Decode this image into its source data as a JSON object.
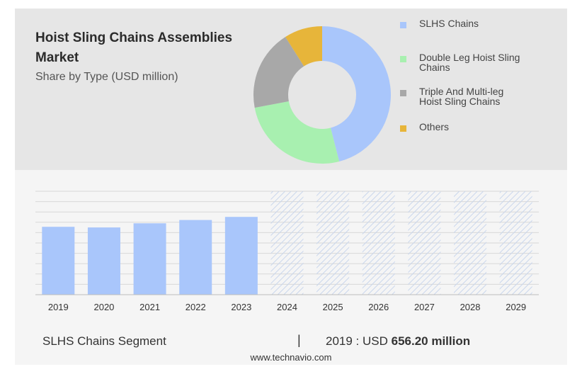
{
  "header": {
    "title": "Hoist Sling Chains Assemblies Market",
    "subtitle": "Share by Type (USD million)"
  },
  "colors": {
    "slhs": "#a9c6fb",
    "double_leg": "#a8f0b0",
    "triple": "#a8a8a8",
    "others": "#e7b53a",
    "forecast_hatch": "#c9d6ec",
    "grid": "#d8d8d8"
  },
  "chart_data": [
    {
      "type": "pie",
      "title": "Share by Type (USD million)",
      "labels": [
        "SLHS Chains",
        "Double Leg Hoist Sling Chains",
        "Triple And Multi-leg Hoist Sling Chains",
        "Others"
      ],
      "values": [
        46,
        26,
        19,
        9
      ],
      "legend": "right",
      "donut": true
    },
    {
      "type": "bar",
      "categories": [
        "2019",
        "2020",
        "2021",
        "2022",
        "2023",
        "2024",
        "2025",
        "2026",
        "2027",
        "2028",
        "2029"
      ],
      "values": [
        656.2,
        650,
        690,
        722,
        752,
        null,
        null,
        null,
        null,
        null,
        null
      ],
      "forecast_categories": [
        "2024",
        "2025",
        "2026",
        "2027",
        "2028",
        "2029"
      ],
      "ylim": [
        0,
        1000
      ],
      "grid": true
    }
  ],
  "footer": {
    "segment": "SLHS Chains Segment",
    "separator": "|",
    "year_label": "2019 : USD",
    "amount": "656.20 million",
    "website": "www.technavio.com"
  }
}
